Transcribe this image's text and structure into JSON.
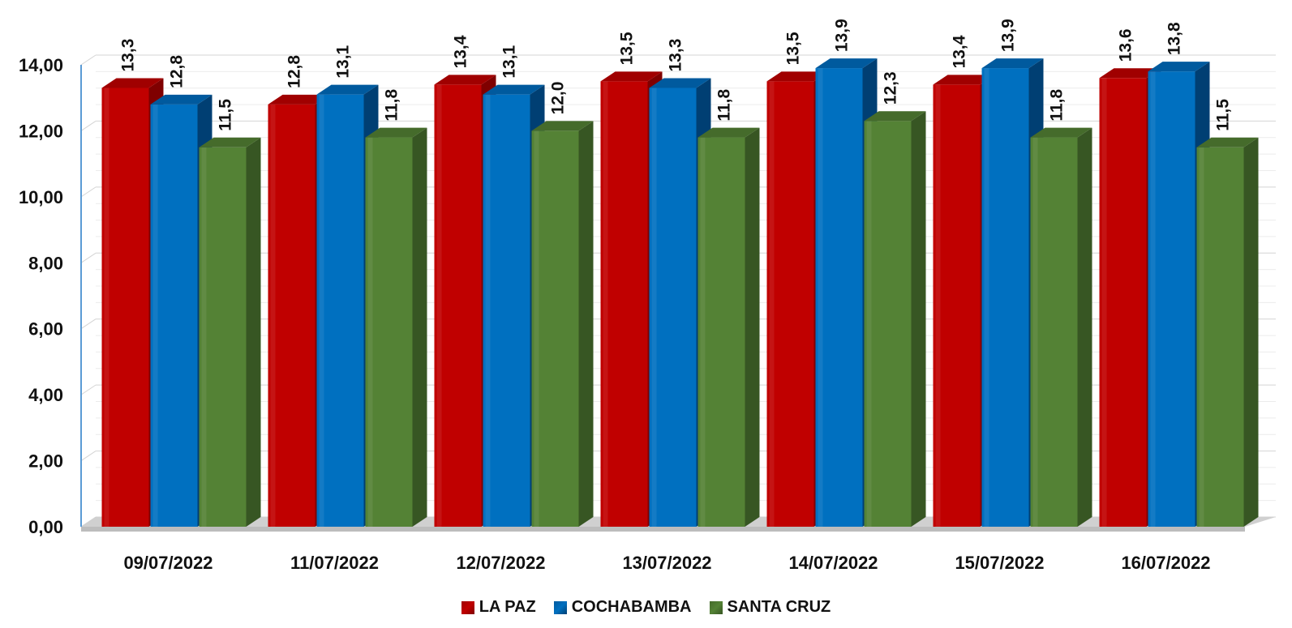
{
  "chart_data": {
    "type": "bar",
    "title": "",
    "xlabel": "",
    "ylabel": "",
    "ylim": [
      0,
      14
    ],
    "yticks": [
      "0,00",
      "2,00",
      "4,00",
      "6,00",
      "8,00",
      "10,00",
      "12,00",
      "14,00"
    ],
    "ytick_values": [
      0,
      2,
      4,
      6,
      8,
      10,
      12,
      14
    ],
    "grid": true,
    "legend_position": "bottom",
    "categories": [
      "09/07/2022",
      "11/07/2022",
      "12/07/2022",
      "13/07/2022",
      "14/07/2022",
      "15/07/2022",
      "16/07/2022"
    ],
    "series": [
      {
        "name": "LA PAZ",
        "color": "#C00000",
        "side_color": "#7F0000",
        "top_color": "#A00000",
        "values": [
          13.3,
          12.8,
          13.4,
          13.5,
          13.5,
          13.4,
          13.6
        ],
        "labels": [
          "13,3",
          "12,8",
          "13,4",
          "13,5",
          "13,5",
          "13,4",
          "13,6"
        ]
      },
      {
        "name": "COCHABAMBA",
        "color": "#0070C0",
        "side_color": "#003F73",
        "top_color": "#005A9E",
        "values": [
          12.8,
          13.1,
          13.1,
          13.3,
          13.9,
          13.9,
          13.8
        ],
        "labels": [
          "12,8",
          "13,1",
          "13,1",
          "13,3",
          "13,9",
          "13,9",
          "13,8"
        ]
      },
      {
        "name": "SANTA CRUZ",
        "color": "#548235",
        "side_color": "#375623",
        "top_color": "#456B2B",
        "values": [
          11.5,
          11.8,
          12.0,
          11.8,
          12.3,
          11.8,
          11.5
        ],
        "labels": [
          "11,5",
          "11,8",
          "12,0",
          "11,8",
          "12,3",
          "11,8",
          "11,5"
        ]
      }
    ]
  }
}
